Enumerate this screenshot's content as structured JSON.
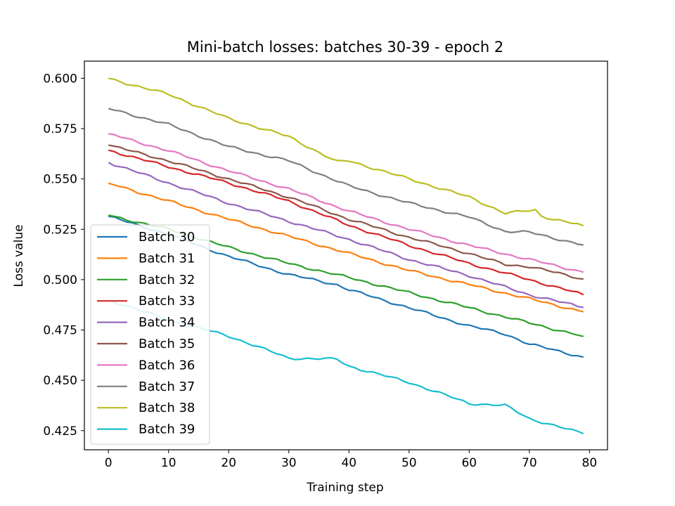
{
  "chart_data": {
    "type": "line",
    "title": "Mini-batch losses: batches 30-39 - epoch 2",
    "xlabel": "Training step",
    "ylabel": "Loss value",
    "xlim": [
      -4,
      83
    ],
    "ylim": [
      0.4155,
      0.6085
    ],
    "xticks": [
      0,
      10,
      20,
      30,
      40,
      50,
      60,
      70,
      80
    ],
    "yticks": [
      0.425,
      0.45,
      0.475,
      0.5,
      0.525,
      0.55,
      0.575,
      0.6
    ],
    "ytick_labels": [
      "0.425",
      "0.450",
      "0.475",
      "0.500",
      "0.525",
      "0.550",
      "0.575",
      "0.600"
    ],
    "grid": false,
    "legend": "lower-left",
    "x_start": 0,
    "x_end": 79,
    "series": [
      {
        "name": "Batch 30",
        "color": "#1f77b4",
        "knots": [
          [
            0,
            0.5314
          ],
          [
            10,
            0.5225
          ],
          [
            20,
            0.5115
          ],
          [
            30,
            0.5025
          ],
          [
            38,
            0.4975
          ],
          [
            40,
            0.495
          ],
          [
            50,
            0.486
          ],
          [
            60,
            0.477
          ],
          [
            66,
            0.473
          ],
          [
            70,
            0.468
          ],
          [
            79,
            0.4615
          ]
        ]
      },
      {
        "name": "Batch 31",
        "color": "#ff7f0e",
        "knots": [
          [
            0,
            0.5479
          ],
          [
            10,
            0.539
          ],
          [
            20,
            0.53
          ],
          [
            30,
            0.5215
          ],
          [
            40,
            0.513
          ],
          [
            50,
            0.5045
          ],
          [
            60,
            0.4975
          ],
          [
            70,
            0.4905
          ],
          [
            79,
            0.484
          ]
        ]
      },
      {
        "name": "Batch 32",
        "color": "#2ca02c",
        "knots": [
          [
            0,
            0.532
          ],
          [
            10,
            0.525
          ],
          [
            20,
            0.516
          ],
          [
            30,
            0.508
          ],
          [
            40,
            0.501
          ],
          [
            50,
            0.4935
          ],
          [
            60,
            0.486
          ],
          [
            70,
            0.4785
          ],
          [
            79,
            0.4718
          ]
        ]
      },
      {
        "name": "Batch 33",
        "color": "#d62728",
        "knots": [
          [
            0,
            0.5643
          ],
          [
            10,
            0.556
          ],
          [
            20,
            0.548
          ],
          [
            30,
            0.539
          ],
          [
            40,
            0.527
          ],
          [
            50,
            0.517
          ],
          [
            60,
            0.508
          ],
          [
            70,
            0.5
          ],
          [
            79,
            0.4925
          ]
        ]
      },
      {
        "name": "Batch 34",
        "color": "#9467bd",
        "knots": [
          [
            0,
            0.5582
          ],
          [
            10,
            0.548
          ],
          [
            20,
            0.538
          ],
          [
            30,
            0.529
          ],
          [
            40,
            0.52
          ],
          [
            50,
            0.51
          ],
          [
            60,
            0.502
          ],
          [
            70,
            0.4925
          ],
          [
            79,
            0.4862
          ]
        ]
      },
      {
        "name": "Batch 35",
        "color": "#8c564b",
        "knots": [
          [
            0,
            0.5668
          ],
          [
            10,
            0.559
          ],
          [
            20,
            0.55
          ],
          [
            30,
            0.541
          ],
          [
            40,
            0.53
          ],
          [
            50,
            0.521
          ],
          [
            60,
            0.513
          ],
          [
            66,
            0.5075
          ],
          [
            70,
            0.5065
          ],
          [
            79,
            0.5003
          ]
        ]
      },
      {
        "name": "Batch 36",
        "color": "#e377c2",
        "knots": [
          [
            0,
            0.5725
          ],
          [
            10,
            0.564
          ],
          [
            20,
            0.554
          ],
          [
            30,
            0.545
          ],
          [
            40,
            0.534
          ],
          [
            50,
            0.525
          ],
          [
            60,
            0.517
          ],
          [
            70,
            0.51
          ],
          [
            79,
            0.5037
          ]
        ]
      },
      {
        "name": "Batch 37",
        "color": "#7f7f7f",
        "knots": [
          [
            0,
            0.585
          ],
          [
            10,
            0.577
          ],
          [
            20,
            0.566
          ],
          [
            30,
            0.559
          ],
          [
            40,
            0.5465
          ],
          [
            50,
            0.538
          ],
          [
            60,
            0.531
          ],
          [
            66,
            0.524
          ],
          [
            70,
            0.5235
          ],
          [
            79,
            0.5172
          ]
        ]
      },
      {
        "name": "Batch 38",
        "color": "#bcbd22",
        "knots": [
          [
            0,
            0.5999
          ],
          [
            10,
            0.592
          ],
          [
            20,
            0.58
          ],
          [
            30,
            0.571
          ],
          [
            38,
            0.5585
          ],
          [
            40,
            0.559
          ],
          [
            50,
            0.55
          ],
          [
            60,
            0.541
          ],
          [
            66,
            0.533
          ],
          [
            71,
            0.5345
          ],
          [
            72,
            0.5315
          ],
          [
            79,
            0.5268
          ]
        ]
      },
      {
        "name": "Batch 39",
        "color": "#17becf",
        "knots": [
          [
            0,
            0.49
          ],
          [
            10,
            0.48
          ],
          [
            20,
            0.472
          ],
          [
            30,
            0.461
          ],
          [
            38,
            0.4605
          ],
          [
            40,
            0.457
          ],
          [
            50,
            0.449
          ],
          [
            60,
            0.4385
          ],
          [
            66,
            0.4375
          ],
          [
            70,
            0.431
          ],
          [
            79,
            0.4235
          ]
        ]
      }
    ]
  }
}
